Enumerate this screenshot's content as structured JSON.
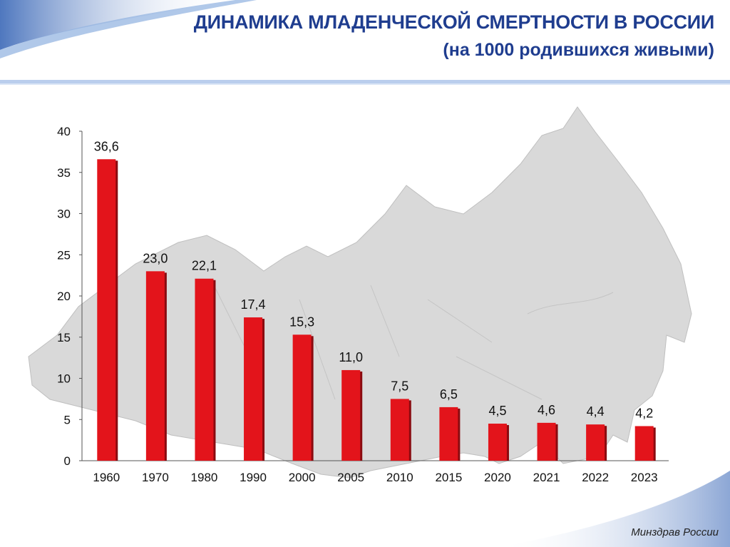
{
  "header": {
    "title": "ДИНАМИКА МЛАДЕНЧЕСКОЙ СМЕРТНОСТИ В РОССИИ",
    "subtitle": "(на 1000 родившихся живыми)"
  },
  "footer": {
    "source": "Минздрав России"
  },
  "colors": {
    "title": "#1f3d8f",
    "bar": "#e3141b",
    "bar_dark": "#8a0b10",
    "map": "#d9d9d9"
  },
  "chart_data": {
    "type": "bar",
    "title": "ДИНАМИКА МЛАДЕНЧЕСКОЙ СМЕРТНОСТИ В РОССИИ",
    "subtitle": "(на 1000 родившихся живыми)",
    "categories": [
      "1960",
      "1970",
      "1980",
      "1990",
      "2000",
      "2005",
      "2010",
      "2015",
      "2020",
      "2021",
      "2022",
      "2023"
    ],
    "values": [
      36.6,
      23.0,
      22.1,
      17.4,
      15.3,
      11.0,
      7.5,
      6.5,
      4.5,
      4.6,
      4.4,
      4.2
    ],
    "data_labels": [
      "36,6",
      "23,0",
      "22,1",
      "17,4",
      "15,3",
      "11,0",
      "7,5",
      "6,5",
      "4,5",
      "4,6",
      "4,4",
      "4,2"
    ],
    "ylim": [
      0,
      40
    ],
    "yticks": [
      0,
      5,
      10,
      15,
      20,
      25,
      30,
      35,
      40
    ],
    "xlabel": "",
    "ylabel": "",
    "grid": false,
    "legend": "none"
  }
}
